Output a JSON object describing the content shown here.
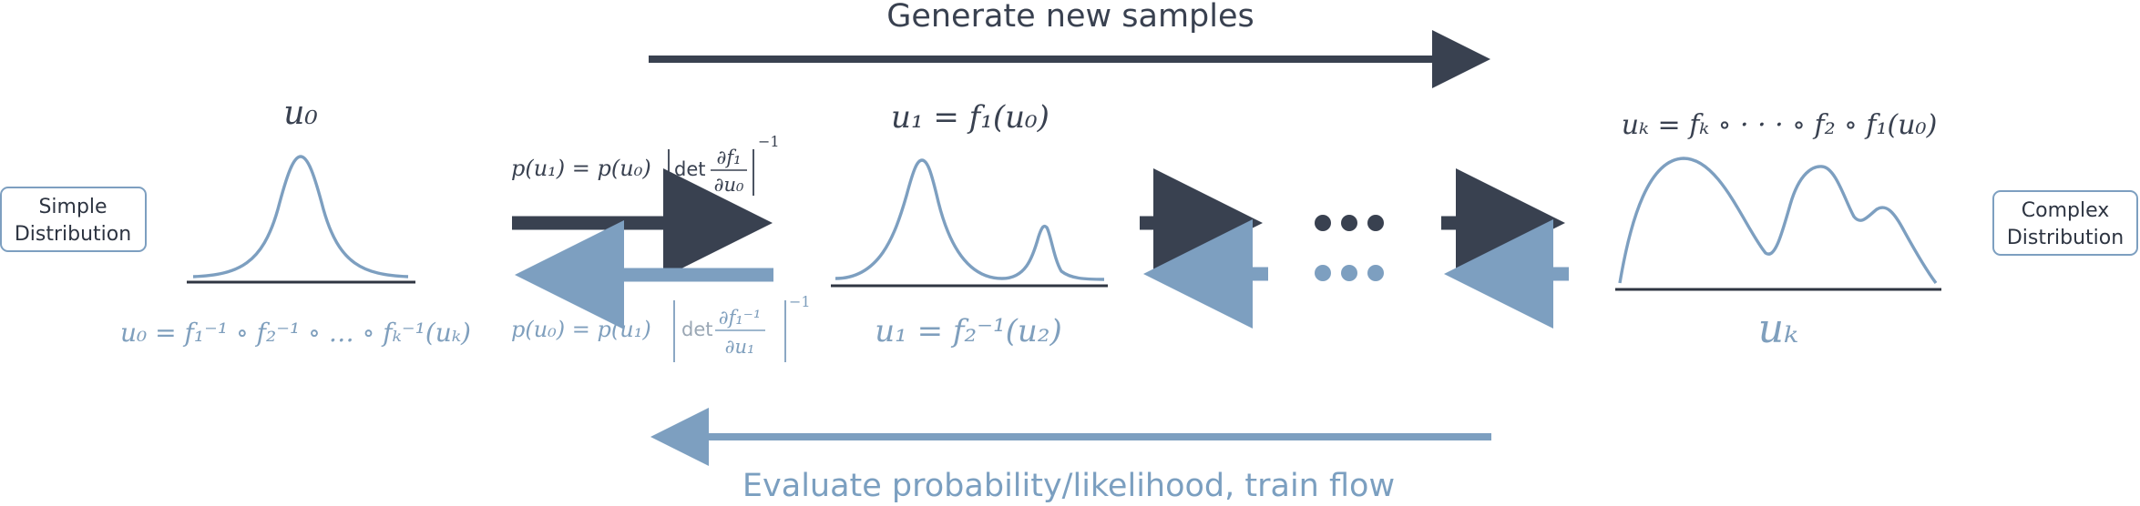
{
  "colors": {
    "dark": "#394150",
    "light": "#7d9fc0",
    "base": "#2f3642"
  },
  "top_label": "Generate new samples",
  "bottom_label": "Evaluate probability/likelihood, train flow",
  "left_box": {
    "line1": "Simple",
    "line2": "Distribution"
  },
  "right_box": {
    "line1": "Complex",
    "line2": "Distribution"
  },
  "labels": {
    "u0_top": "u₀",
    "u1_top": "u₁ = f₁(u₀)",
    "uk_top": "uₖ = fₖ ∘ · · · ∘ f₂ ∘ f₁(u₀)",
    "u0_bottom": "u₀ = f₁⁻¹ ∘ f₂⁻¹ ∘ … ∘ fₖ⁻¹(uₖ)",
    "u1_bottom": "u₁ = f₂⁻¹(u₂)",
    "uk_bottom": "uₖ"
  },
  "formulas": {
    "forward": {
      "lhs": "p(u₁) = p(u₀)",
      "det": "det",
      "num": "∂f₁",
      "den": "∂u₀",
      "power": "−1"
    },
    "inverse": {
      "lhs": "p(u₀) = p(u₁)",
      "det": "det",
      "num": "∂f₁⁻¹",
      "den": "∂u₁",
      "power": "−1"
    }
  }
}
